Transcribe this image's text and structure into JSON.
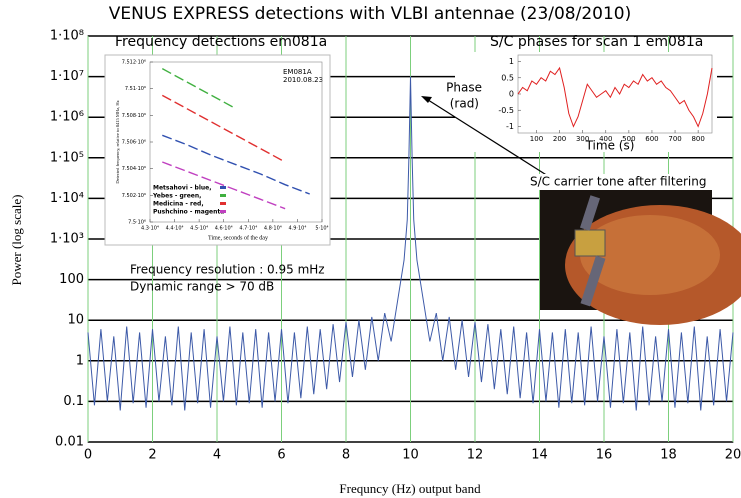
{
  "chart_data": [
    {
      "type": "line",
      "title": "VENUS EXPRESS detections with VLBI antennae (23/08/2010)",
      "xlabel": "Frequncy (Hz) output band",
      "ylabel": "Power (log scale)",
      "log_y": true,
      "grid": true,
      "color": "#3d5aa8",
      "annotations": [
        "Frequency resolution : 0.95 mHz",
        "Dynamic range > 70 dB",
        "S/C carrier tone after filtering"
      ],
      "xlim": [
        0,
        20
      ],
      "ylim": [
        0.01,
        100000000
      ],
      "xticks": [
        0,
        2,
        4,
        6,
        8,
        10,
        12,
        14,
        16,
        18,
        20
      ],
      "yticks": [
        0.01,
        0.1,
        1,
        10,
        100,
        {
          "value": 1000,
          "label": "1·10³"
        },
        {
          "value": 10000,
          "label": "1·10⁴"
        },
        {
          "value": 100000,
          "label": "1·10⁵"
        },
        {
          "value": 1000000,
          "label": "1·10⁶"
        },
        {
          "value": 10000000,
          "label": "1·10⁷"
        },
        {
          "value": 100000000,
          "label": "1·10⁸"
        }
      ],
      "x": [
        0,
        0.2,
        0.4,
        0.6,
        0.8,
        1.0,
        1.2,
        1.4,
        1.6,
        1.8,
        2.0,
        2.2,
        2.4,
        2.6,
        2.8,
        3.0,
        3.2,
        3.4,
        3.6,
        3.8,
        4.0,
        4.2,
        4.4,
        4.6,
        4.8,
        5.0,
        5.2,
        5.4,
        5.6,
        5.8,
        6.0,
        6.2,
        6.4,
        6.6,
        6.8,
        7.0,
        7.2,
        7.4,
        7.6,
        7.8,
        8.0,
        8.2,
        8.4,
        8.6,
        8.8,
        9.0,
        9.2,
        9.4,
        9.6,
        9.8,
        9.9,
        9.95,
        10,
        10.05,
        10.1,
        10.2,
        10.4,
        10.6,
        10.8,
        11.0,
        11.2,
        11.4,
        11.6,
        11.8,
        12.0,
        12.2,
        12.4,
        12.6,
        12.8,
        13.0,
        13.2,
        13.4,
        13.6,
        13.8,
        14.0,
        14.2,
        14.4,
        14.6,
        14.8,
        15.0,
        15.2,
        15.4,
        15.6,
        15.8,
        16.0,
        16.2,
        16.4,
        16.6,
        16.8,
        17.0,
        17.2,
        17.4,
        17.6,
        17.8,
        18.0,
        18.2,
        18.4,
        18.6,
        18.8,
        19.0,
        19.2,
        19.4,
        19.6,
        19.8,
        20
      ],
      "values": [
        5,
        0.08,
        6,
        0.1,
        4,
        0.06,
        7,
        0.09,
        5,
        0.07,
        6,
        0.1,
        4,
        0.08,
        7,
        0.06,
        5,
        0.09,
        6,
        0.07,
        4,
        0.1,
        7,
        0.08,
        5,
        0.09,
        6,
        0.07,
        5,
        0.1,
        6,
        0.09,
        5,
        0.12,
        7,
        0.15,
        6,
        0.2,
        8,
        0.3,
        9,
        0.4,
        10,
        0.6,
        12,
        1,
        15,
        3,
        30,
        300,
        3000,
        100000,
        10000000,
        100000,
        3000,
        300,
        30,
        3,
        15,
        1,
        12,
        0.6,
        10,
        0.4,
        9,
        0.3,
        8,
        0.2,
        6,
        0.15,
        7,
        0.12,
        5,
        0.09,
        6,
        0.1,
        5,
        0.07,
        6,
        0.09,
        5,
        0.08,
        7,
        0.1,
        4,
        0.07,
        6,
        0.09,
        5,
        0.06,
        7,
        0.08,
        4,
        0.1,
        6,
        0.07,
        5,
        0.09,
        7,
        0.06,
        4,
        0.08,
        6,
        0.1,
        5
      ]
    },
    {
      "type": "line",
      "title": "Frequency detections em081a",
      "dashed": true,
      "annotations": [
        "EM081A",
        "2010.08.23"
      ],
      "xlabel": "Time, seconds of the day",
      "ylabel": "Detected frequency, relative to 8415 MHz, Hz",
      "xlim": [
        43000,
        50000
      ],
      "ylim": [
        7500000,
        7512000
      ],
      "xticks": [
        {
          "value": 43000,
          "label": "4.3·10⁴"
        },
        {
          "value": 44000,
          "label": "4.4·10⁴"
        },
        {
          "value": 45000,
          "label": "4.5·10⁴"
        },
        {
          "value": 46000,
          "label": "4.6·10⁴"
        },
        {
          "value": 47000,
          "label": "4.7·10⁴"
        },
        {
          "value": 48000,
          "label": "4.8·10⁴"
        },
        {
          "value": 49000,
          "label": "4.9·10⁴"
        },
        {
          "value": 50000,
          "label": "5·10⁴"
        }
      ],
      "yticks": [
        {
          "value": 7500000,
          "label": "7.5·10⁶"
        },
        {
          "value": 7502000,
          "label": "7.502·10⁶"
        },
        {
          "value": 7504000,
          "label": "7.504·10⁶"
        },
        {
          "value": 7506000,
          "label": "7.506·10⁶"
        },
        {
          "value": 7508000,
          "label": "7.508·10⁶"
        },
        {
          "value": 7510000,
          "label": "7.51·10⁶"
        },
        {
          "value": 7512000,
          "label": "7.512·10⁶"
        }
      ],
      "x": [
        43500,
        44500,
        45500,
        46500,
        47500,
        48500,
        49500
      ],
      "series": [
        {
          "name": "Metsahovi - blue,",
          "color": "#3050b0",
          "values": [
            7506500,
            7505800,
            7505000,
            7504300,
            7503600,
            7502800,
            7502100
          ]
        },
        {
          "name": "Yebes - green,",
          "color": "#40b040",
          "values": [
            7511500,
            7510500,
            7509500,
            7508500,
            null,
            null,
            null
          ]
        },
        {
          "name": "Medicina - red,",
          "color": "#e03030",
          "values": [
            7509500,
            7508500,
            7507500,
            7506500,
            7505500,
            7504500,
            null
          ]
        },
        {
          "name": "Pushchino - magenta",
          "color": "#c040c0",
          "values": [
            7504500,
            7503800,
            7503100,
            7502400,
            7501700,
            7501000,
            null
          ]
        }
      ]
    },
    {
      "type": "line",
      "title": "S/C phases for scan 1 em081a",
      "xlabel": "Time (s)",
      "ylabel": "Phase",
      "yunit": "(rad)",
      "color": "#e02020",
      "xlim": [
        20,
        860
      ],
      "ylim": [
        -1.2,
        1.2
      ],
      "xticks": [
        100,
        200,
        300,
        400,
        500,
        600,
        700,
        800
      ],
      "yticks": [
        1,
        0.5,
        0,
        -0.5,
        -1
      ],
      "x": [
        20,
        40,
        60,
        80,
        100,
        120,
        140,
        160,
        180,
        200,
        220,
        240,
        260,
        280,
        300,
        320,
        340,
        360,
        380,
        400,
        420,
        440,
        460,
        480,
        500,
        520,
        540,
        560,
        580,
        600,
        620,
        640,
        660,
        680,
        700,
        720,
        740,
        760,
        780,
        800,
        820,
        840,
        860
      ],
      "values": [
        0.0,
        0.2,
        0.1,
        0.4,
        0.3,
        0.5,
        0.4,
        0.7,
        0.6,
        0.8,
        0.2,
        -0.6,
        -1.0,
        -0.7,
        -0.2,
        0.3,
        0.1,
        -0.1,
        0.0,
        0.1,
        -0.1,
        0.2,
        0.0,
        0.3,
        0.2,
        0.4,
        0.3,
        0.6,
        0.4,
        0.5,
        0.3,
        0.4,
        0.2,
        0.1,
        -0.1,
        -0.3,
        -0.2,
        -0.5,
        -0.7,
        -1.0,
        -0.6,
        0.0,
        0.8
      ]
    }
  ]
}
